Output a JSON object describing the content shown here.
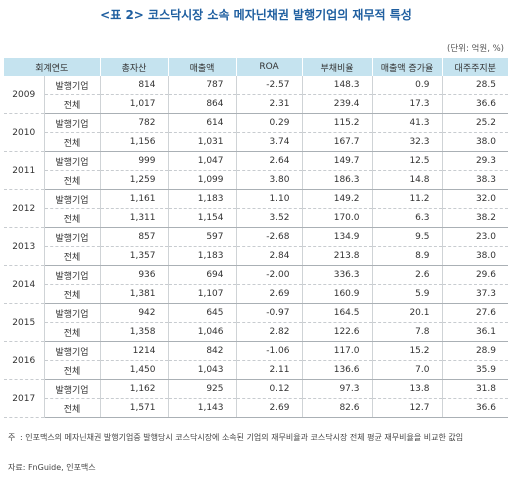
{
  "title": "<표 2> 코스닥시장 소속 메자닌채권 발행기업의 재무적 특성",
  "unit": "(단위: 억원, %)",
  "headers": [
    "회계연도",
    "총자산",
    "매출액",
    "ROA",
    "부채비율",
    "매출액 증가율",
    "대주주지분"
  ],
  "rows": [
    {
      "year": "2009",
      "issuer": {
        "label": "발행기업",
        "values": [
          "814",
          "787",
          "-2.57",
          "148.3",
          "0.9",
          "28.5"
        ]
      },
      "all": {
        "label": "전체",
        "values": [
          "1,017",
          "864",
          "2.31",
          "239.4",
          "17.3",
          "36.6"
        ]
      }
    },
    {
      "year": "2010",
      "issuer": {
        "label": "발행기업",
        "values": [
          "782",
          "614",
          "0.29",
          "115.2",
          "41.3",
          "25.2"
        ]
      },
      "all": {
        "label": "전체",
        "values": [
          "1,156",
          "1,031",
          "3.74",
          "167.7",
          "32.3",
          "38.0"
        ]
      }
    },
    {
      "year": "2011",
      "issuer": {
        "label": "발행기업",
        "values": [
          "999",
          "1,047",
          "2.64",
          "149.7",
          "12.5",
          "29.3"
        ]
      },
      "all": {
        "label": "전체",
        "values": [
          "1,259",
          "1,099",
          "3.80",
          "186.3",
          "14.8",
          "38.3"
        ]
      }
    },
    {
      "year": "2012",
      "issuer": {
        "label": "발행기업",
        "values": [
          "1,161",
          "1,183",
          "1.10",
          "149.2",
          "11.2",
          "32.0"
        ]
      },
      "all": {
        "label": "전체",
        "values": [
          "1,311",
          "1,154",
          "3.52",
          "170.0",
          "6.3",
          "38.2"
        ]
      }
    },
    {
      "year": "2013",
      "issuer": {
        "label": "발행기업",
        "values": [
          "857",
          "597",
          "-2.68",
          "134.9",
          "9.5",
          "23.0"
        ]
      },
      "all": {
        "label": "전체",
        "values": [
          "1,357",
          "1,183",
          "2.84",
          "213.8",
          "8.9",
          "38.0"
        ]
      }
    },
    {
      "year": "2014",
      "issuer": {
        "label": "발행기업",
        "values": [
          "936",
          "694",
          "-2.00",
          "336.3",
          "2.6",
          "29.6"
        ]
      },
      "all": {
        "label": "전체",
        "values": [
          "1,381",
          "1,107",
          "2.69",
          "160.9",
          "5.9",
          "37.3"
        ]
      }
    },
    {
      "year": "2015",
      "issuer": {
        "label": "발행기업",
        "values": [
          "942",
          "645",
          "-0.97",
          "164.5",
          "20.1",
          "27.6"
        ]
      },
      "all": {
        "label": "전체",
        "values": [
          "1,358",
          "1,046",
          "2.82",
          "122.6",
          "7.8",
          "36.1"
        ]
      }
    },
    {
      "year": "2016",
      "issuer": {
        "label": "발행기업",
        "values": [
          "1214",
          "842",
          "-1.06",
          "117.0",
          "15.2",
          "28.9"
        ]
      },
      "all": {
        "label": "전체",
        "values": [
          "1,450",
          "1,043",
          "2.11",
          "136.6",
          "7.0",
          "35.9"
        ]
      }
    },
    {
      "year": "2017",
      "issuer": {
        "label": "발행기업",
        "values": [
          "1,162",
          "925",
          "0.12",
          "97.3",
          "13.8",
          "31.8"
        ]
      },
      "all": {
        "label": "전체",
        "values": [
          "1,571",
          "1,143",
          "2.69",
          "82.6",
          "12.7",
          "36.6"
        ]
      }
    }
  ],
  "note_mark": "주",
  "note": ": 인포맥스의 메자닌채권 발행기업중 발행당시 코스닥시장에 소속된 기업의 재무비율과 코스닥시장 전체 평균 재무비율을 비교한 값임",
  "source": "자료: FnGuide, 인포맥스"
}
